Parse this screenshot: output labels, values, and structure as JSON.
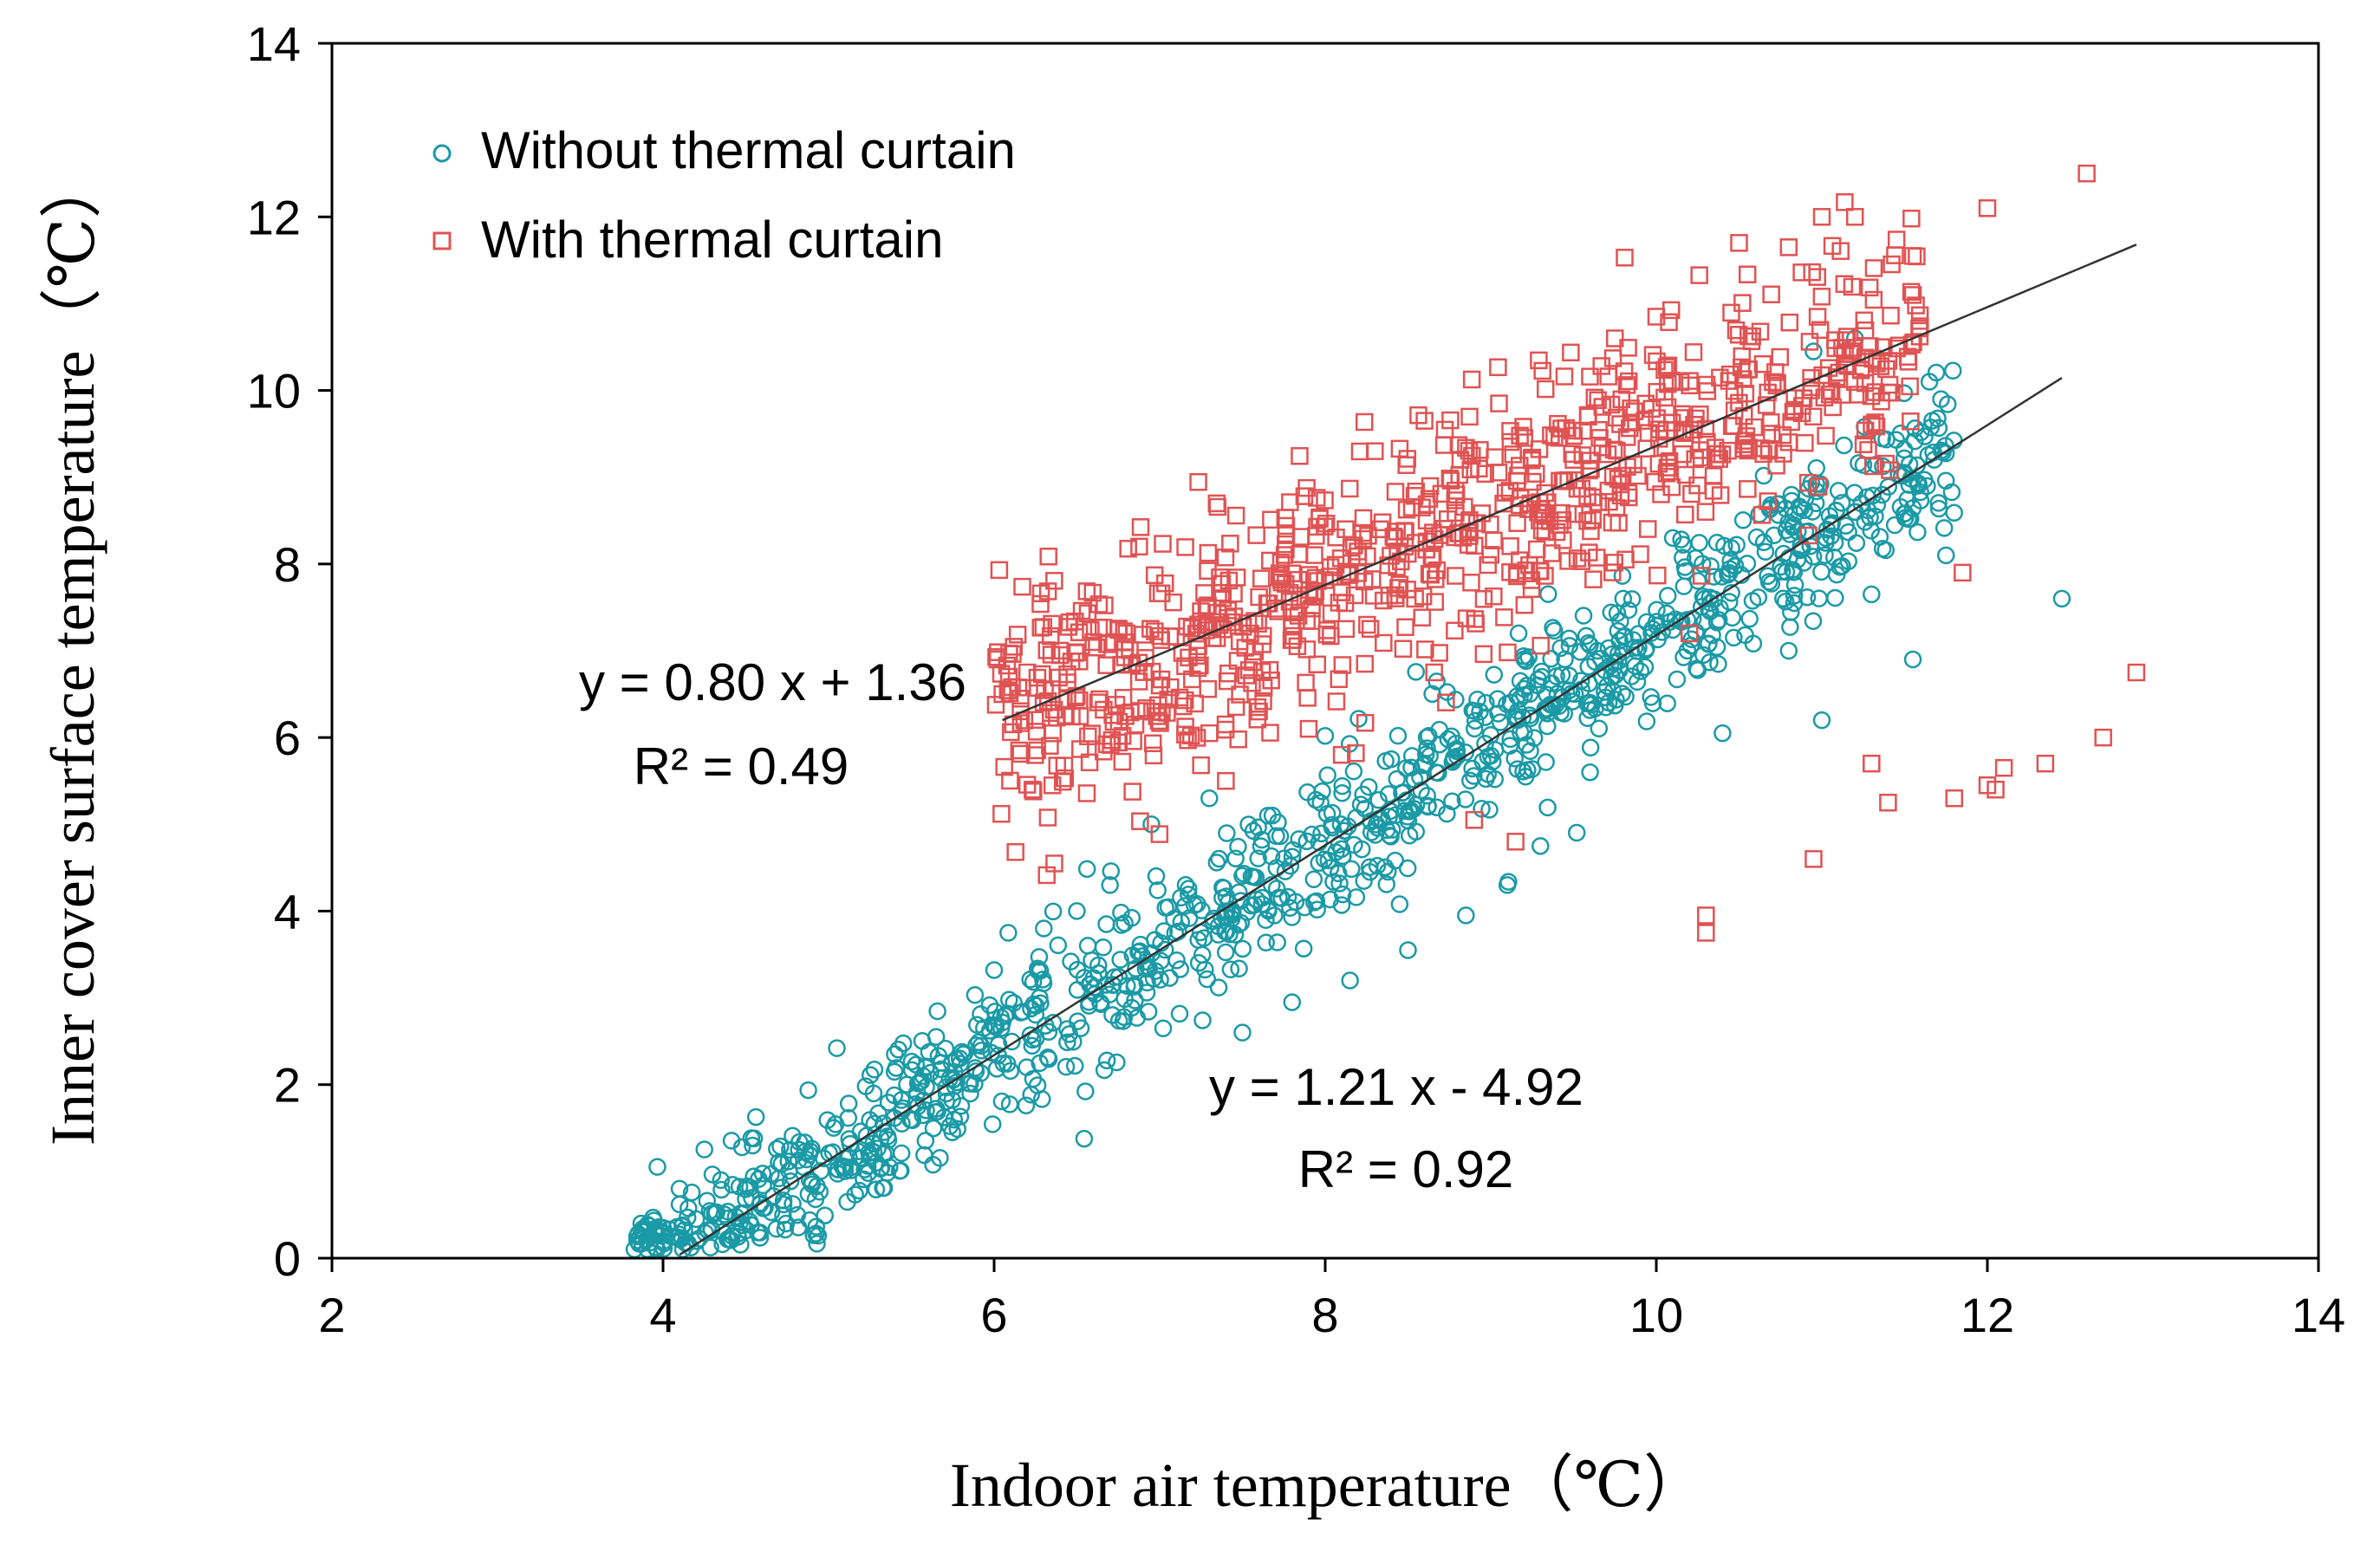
{
  "chart_data": {
    "type": "scatter",
    "title": "",
    "xlabel": "Indoor air temperature（℃）",
    "ylabel": "Inner cover surface temperature（℃）",
    "xlim": [
      2,
      14
    ],
    "ylim": [
      0,
      14
    ],
    "x_ticks": [
      "2",
      "4",
      "6",
      "8",
      "10",
      "12",
      "14"
    ],
    "y_ticks": [
      "0",
      "2",
      "4",
      "6",
      "8",
      "10",
      "12",
      "14"
    ],
    "grid": false,
    "legend_position": "top-left",
    "series": [
      {
        "name": "Without thermal curtain",
        "marker": "circle",
        "color": "#1a9aa6",
        "fit": {
          "slope": 1.21,
          "intercept": -4.92,
          "x_range": [
            4.1,
            12.45
          ],
          "equation": "y = 1.21 x - 4.92",
          "r2": "R² = 0.92"
        },
        "generator": {
          "x_range": [
            3.8,
            11.8
          ],
          "count": 1100,
          "noise_sd": 0.42
        },
        "points": [
          [
            3.85,
            0.28
          ],
          [
            3.92,
            0.18
          ],
          [
            4.0,
            0.35
          ],
          [
            4.1,
            0.62
          ],
          [
            4.2,
            0.45
          ],
          [
            4.35,
            0.9
          ],
          [
            4.5,
            0.68
          ],
          [
            4.55,
            1.38
          ],
          [
            4.7,
            0.92
          ],
          [
            4.85,
            1.05
          ],
          [
            5.05,
            2.42
          ],
          [
            5.4,
            2.35
          ],
          [
            5.65,
            2.55
          ],
          [
            6.0,
            3.32
          ],
          [
            6.3,
            3.8
          ],
          [
            6.5,
            4.0
          ],
          [
            6.7,
            4.3
          ],
          [
            6.95,
            5.0
          ],
          [
            7.3,
            5.3
          ],
          [
            7.5,
            2.6
          ],
          [
            7.8,
            2.95
          ],
          [
            8.15,
            3.2
          ],
          [
            8.5,
            3.55
          ],
          [
            8.85,
            3.95
          ],
          [
            9.1,
            4.3
          ],
          [
            9.3,
            4.75
          ],
          [
            9.6,
            5.6
          ],
          [
            9.8,
            7.6
          ],
          [
            10.1,
            8.3
          ],
          [
            10.4,
            6.05
          ],
          [
            10.65,
            8.25
          ],
          [
            10.8,
            7.0
          ],
          [
            10.95,
            10.45
          ],
          [
            11.0,
            6.2
          ],
          [
            11.2,
            10.6
          ],
          [
            11.3,
            7.65
          ],
          [
            11.55,
            6.9
          ],
          [
            11.65,
            10.1
          ],
          [
            11.72,
            9.9
          ],
          [
            11.75,
            8.1
          ],
          [
            12.45,
            7.6
          ]
        ]
      },
      {
        "name": "With thermal curtain",
        "marker": "square",
        "color": "#e05353",
        "fit": {
          "slope": 0.8,
          "intercept": 1.36,
          "x_range": [
            6.05,
            12.9
          ],
          "equation": "y = 0.80 x + 1.36",
          "r2": "R² = 0.49"
        },
        "generator": {
          "x_range": [
            6.0,
            11.6
          ],
          "count": 850,
          "noise_sd": 0.75
        },
        "points": [
          [
            6.02,
            6.9
          ],
          [
            6.05,
            6.5
          ],
          [
            6.2,
            6.75
          ],
          [
            6.4,
            6.95
          ],
          [
            6.6,
            7.1
          ],
          [
            6.8,
            7.2
          ],
          [
            7.0,
            6.6
          ],
          [
            7.3,
            6.05
          ],
          [
            7.4,
            5.5
          ],
          [
            7.6,
            6.3
          ],
          [
            7.9,
            6.1
          ],
          [
            8.1,
            5.8
          ],
          [
            8.3,
            9.3
          ],
          [
            8.6,
            9.65
          ],
          [
            8.9,
            5.05
          ],
          [
            9.05,
            9.85
          ],
          [
            9.15,
            4.8
          ],
          [
            9.5,
            9.2
          ],
          [
            9.75,
            10.6
          ],
          [
            10.0,
            10.85
          ],
          [
            10.2,
            7.2
          ],
          [
            10.3,
            3.95
          ],
          [
            10.3,
            3.75
          ],
          [
            10.5,
            11.7
          ],
          [
            10.8,
            11.65
          ],
          [
            10.95,
            4.6
          ],
          [
            11.0,
            12.0
          ],
          [
            11.2,
            12.0
          ],
          [
            11.3,
            5.7
          ],
          [
            11.4,
            5.25
          ],
          [
            11.55,
            11.55
          ],
          [
            11.55,
            11.1
          ],
          [
            11.8,
            5.3
          ],
          [
            11.85,
            7.9
          ],
          [
            12.0,
            12.1
          ],
          [
            12.0,
            5.45
          ],
          [
            12.05,
            5.4
          ],
          [
            12.1,
            5.65
          ],
          [
            12.35,
            5.7
          ],
          [
            12.6,
            12.5
          ],
          [
            12.7,
            6.0
          ],
          [
            12.9,
            6.75
          ]
        ]
      }
    ]
  }
}
